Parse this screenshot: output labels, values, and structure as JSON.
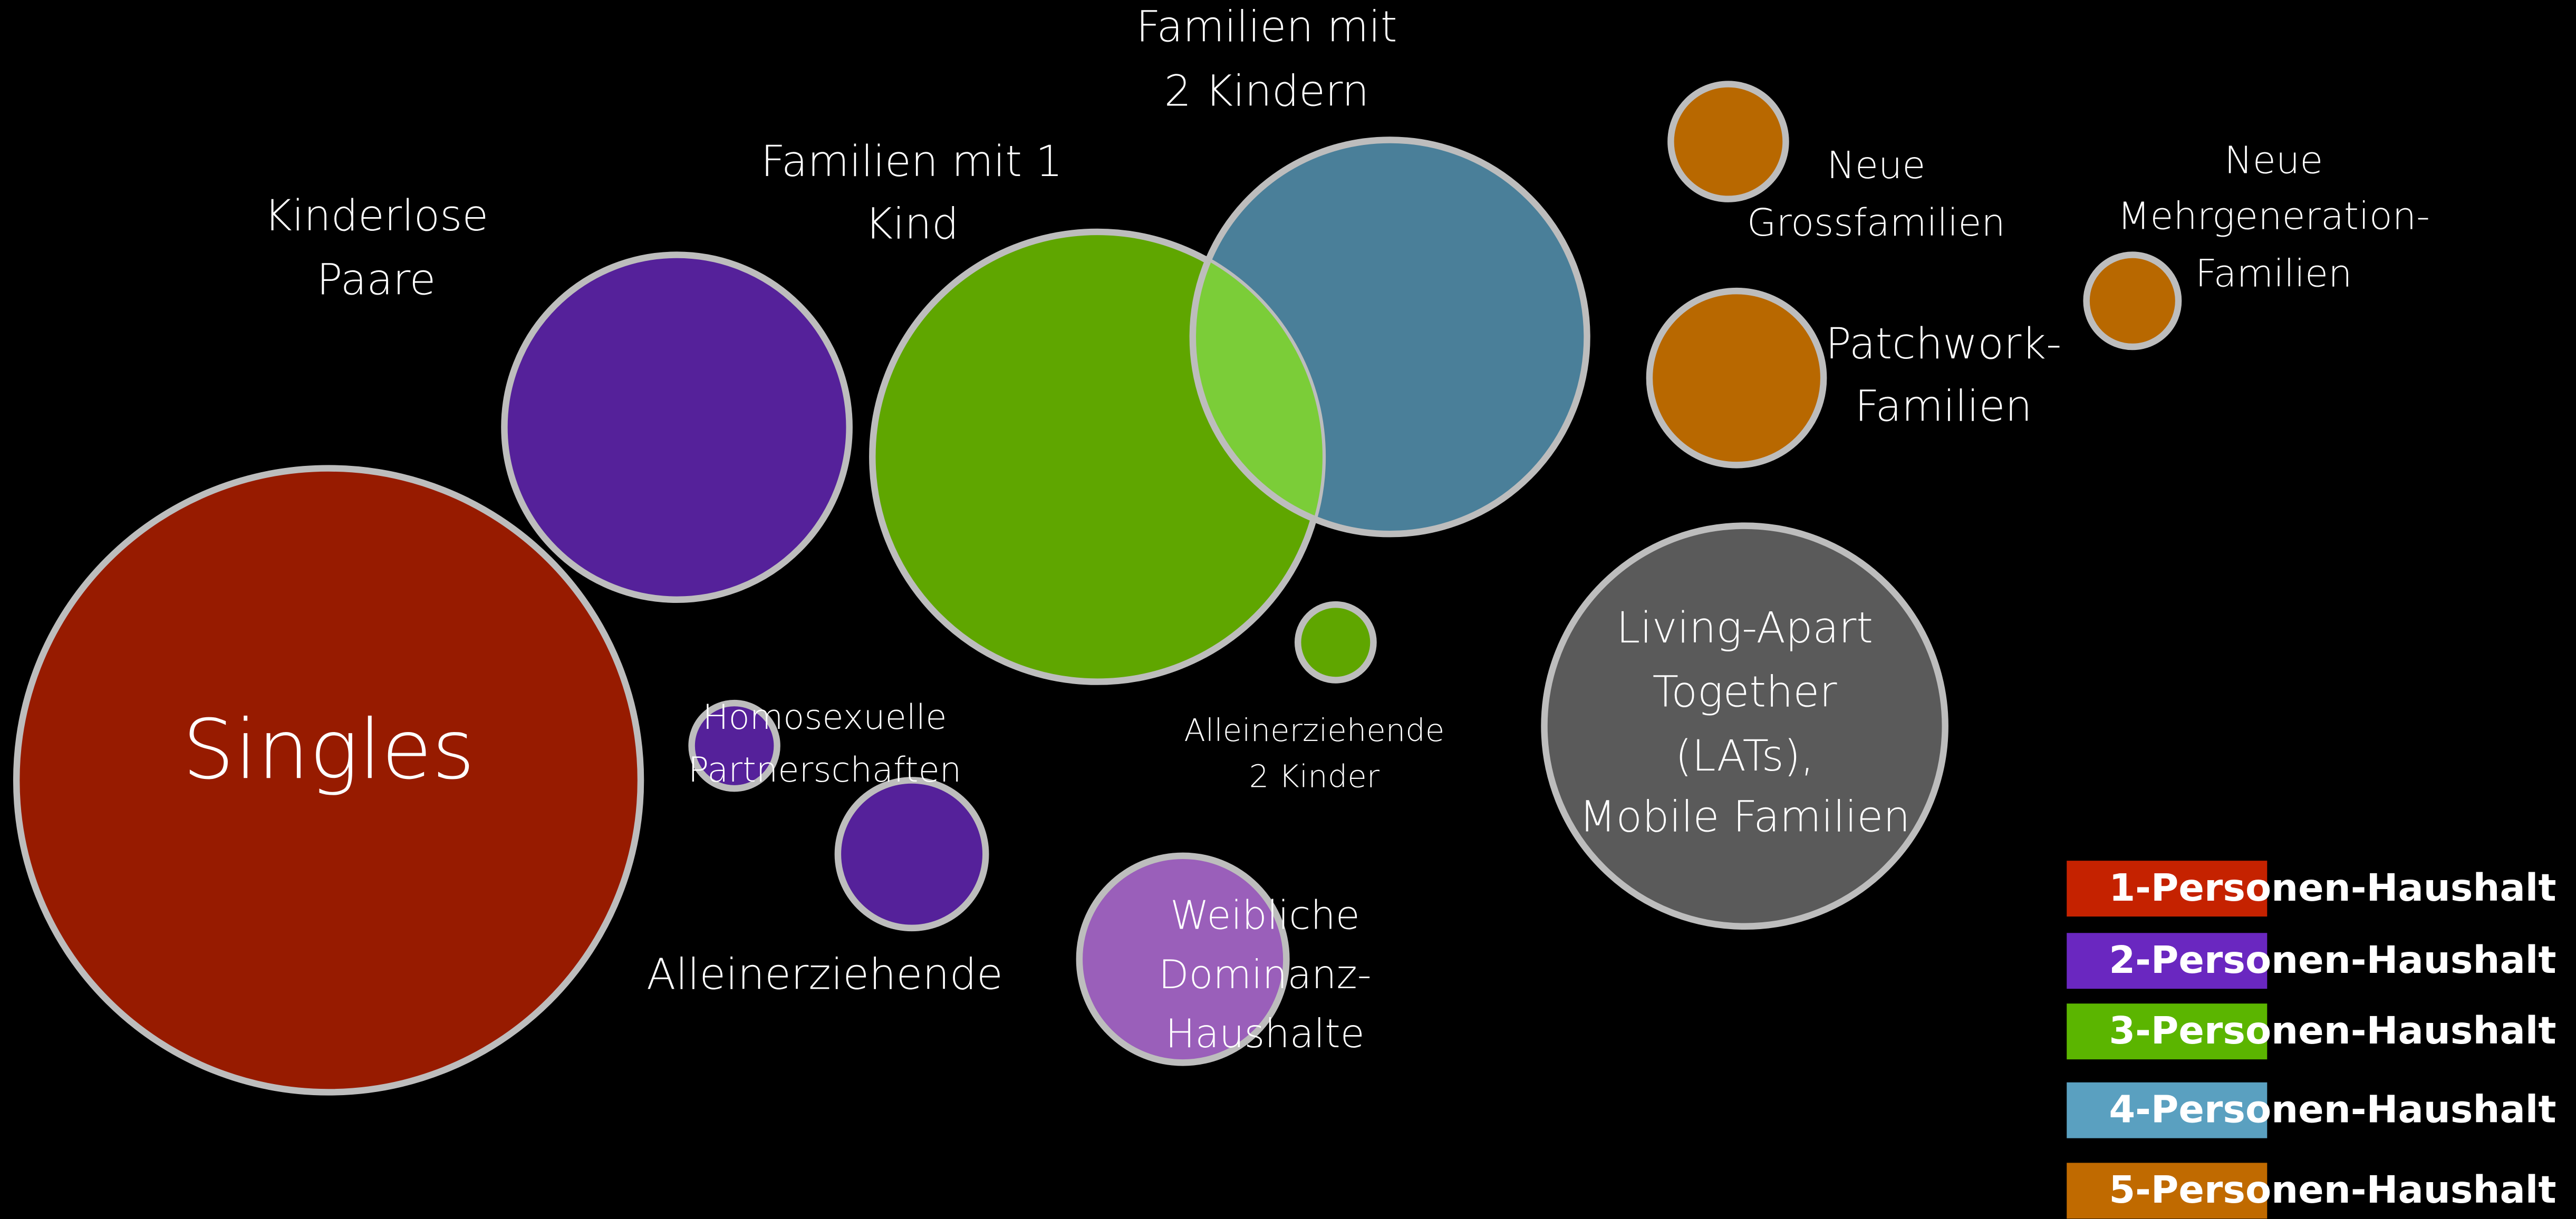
{
  "nodes": [
    {
      "label": [
        "Familien mit",
        "2 Kindern"
      ]
    },
    {
      "label": [
        "Familien mit 1",
        "Kind"
      ]
    },
    {
      "label": [
        "Singles"
      ]
    },
    {
      "label": [
        "Kinderlose",
        "Paare"
      ]
    },
    {
      "label": [
        "Neue",
        "Grossfamilien"
      ]
    },
    {
      "label": [
        "Neue",
        "Mehrgeneration-",
        "Familien"
      ]
    },
    {
      "label": [
        "Patchwork-",
        "Familien"
      ]
    },
    {
      "label": [
        "Living-Apart",
        "Together",
        "(LATs),",
        "Mobile Familien"
      ]
    },
    {
      "label": [
        "Homosexuelle",
        "Partnerschaften"
      ]
    },
    {
      "label": [
        "Alleinerziehende"
      ]
    },
    {
      "label": [
        "Alleinerziehende",
        "2 Kinder"
      ]
    },
    {
      "label": [
        "Weibliche",
        "Dominanz-",
        "Haushalte"
      ]
    }
  ],
  "legend": [
    "1-Personen-Haushalt",
    "2-Personen-Haushalt",
    "3-Personen-Haushalt",
    "4-Personen-Haushalt",
    "5-Personen-Haushalt"
  ]
}
